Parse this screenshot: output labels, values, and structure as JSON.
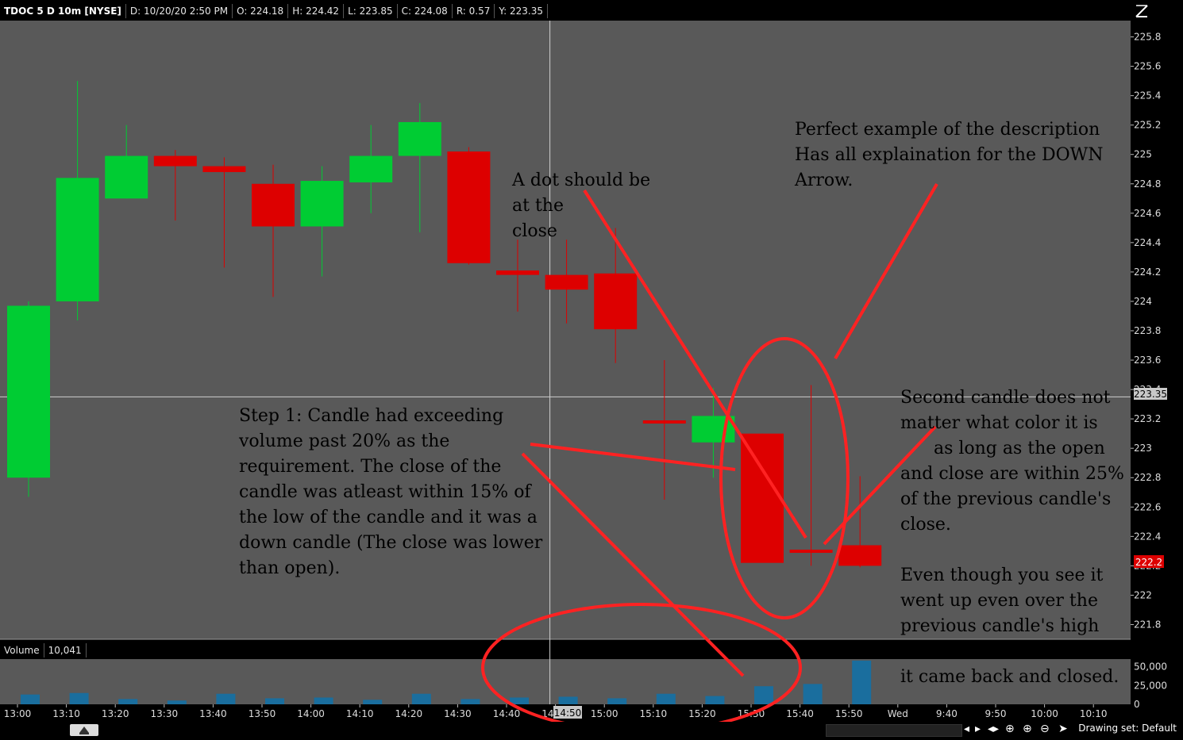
{
  "header": {
    "symbol": "TDOC 5 D 10m [NYSE]",
    "date": "D: 10/20/20 2:50 PM",
    "open": "O: 224.18",
    "high": "H: 224.42",
    "low": "L: 223.85",
    "close": "C: 224.08",
    "range": "R: 0.57",
    "y": "Y: 223.35"
  },
  "volume_header": {
    "label": "Volume",
    "value": "10,041"
  },
  "crosshair": {
    "price_label": "223.35",
    "time_label": "14:50",
    "price": 223.35,
    "time_index": 11
  },
  "last_price_label": "222.2",
  "notes": {
    "dot": "A dot should be\nat the\nclose",
    "perfect": "Perfect example of the description\nHas all explaination for the DOWN\nArrow.",
    "step1": "Step 1: Candle had exceeding\nvolume past 20% as the\nrequirement. The close of the\ncandle was atleast within 15% of\nthe low of the candle and it was a\ndown candle (The close was lower\nthan open).",
    "second": "Second candle does not\nmatter what color it is\n      as long as the open\nand close are within 25%\nof the previous candle's\nclose.\n\nEven though you see it\nwent up even over the\nprevious candle's high",
    "closed": "it came back and closed."
  },
  "drawing_set": "Drawing set: Default",
  "colors": {
    "up": "#00cc33",
    "down": "#dd0000",
    "volume": "#1a6e9e",
    "annotation": "#ff2222",
    "panel": "#595959",
    "axis": "#000000"
  },
  "chart_data": {
    "type": "candlestick",
    "x_labels": [
      "13:00",
      "13:10",
      "13:20",
      "13:30",
      "13:40",
      "13:50",
      "14:00",
      "14:10",
      "14:20",
      "14:30",
      "14:40",
      "14:50",
      "15:00",
      "15:10",
      "15:20",
      "15:30",
      "15:40",
      "15:50",
      "Wed",
      "9:40",
      "9:50",
      "10:00",
      "10:10"
    ],
    "y_ticks": [
      225.8,
      225.6,
      225.4,
      225.2,
      225,
      224.8,
      224.6,
      224.4,
      224.2,
      224,
      223.8,
      223.6,
      223.4,
      223.2,
      223,
      222.8,
      222.6,
      222.4,
      222.2,
      222,
      221.8
    ],
    "ylim": [
      221.7,
      225.9
    ],
    "volume_ticks": [
      "50,000",
      "25,000",
      "0"
    ],
    "volume_max": 60000,
    "candles": [
      {
        "o": 222.8,
        "h": 224.0,
        "l": 222.67,
        "c": 223.97,
        "v": 13000
      },
      {
        "o": 224.0,
        "h": 225.5,
        "l": 223.87,
        "c": 224.84,
        "v": 15000
      },
      {
        "o": 224.7,
        "h": 225.2,
        "l": 224.7,
        "c": 224.99,
        "v": 7000
      },
      {
        "o": 224.99,
        "h": 225.03,
        "l": 224.55,
        "c": 224.92,
        "v": 5000
      },
      {
        "o": 224.92,
        "h": 224.98,
        "l": 224.23,
        "c": 224.88,
        "v": 14000
      },
      {
        "o": 224.8,
        "h": 224.93,
        "l": 224.03,
        "c": 224.51,
        "v": 8000
      },
      {
        "o": 224.51,
        "h": 224.92,
        "l": 224.17,
        "c": 224.82,
        "v": 9000
      },
      {
        "o": 224.81,
        "h": 225.2,
        "l": 224.6,
        "c": 224.99,
        "v": 6000
      },
      {
        "o": 224.99,
        "h": 225.35,
        "l": 224.47,
        "c": 225.22,
        "v": 14000
      },
      {
        "o": 225.02,
        "h": 225.05,
        "l": 224.25,
        "c": 224.26,
        "v": 7000
      },
      {
        "o": 224.21,
        "h": 224.42,
        "l": 223.93,
        "c": 224.18,
        "v": 9000
      },
      {
        "o": 224.18,
        "h": 224.42,
        "l": 223.85,
        "c": 224.08,
        "v": 10041
      },
      {
        "o": 224.19,
        "h": 224.5,
        "l": 223.58,
        "c": 223.81,
        "v": 8000
      },
      {
        "o": 223.19,
        "h": 223.6,
        "l": 222.65,
        "c": 223.18,
        "v": 14000
      },
      {
        "o": 223.04,
        "h": 223.41,
        "l": 222.8,
        "c": 223.22,
        "v": 11000
      },
      {
        "o": 223.1,
        "h": 223.1,
        "l": 222.23,
        "c": 222.22,
        "v": 24000
      },
      {
        "o": 222.31,
        "h": 223.43,
        "l": 222.2,
        "c": 222.29,
        "v": 27000
      },
      {
        "o": 222.34,
        "h": 222.81,
        "l": 222.19,
        "c": 222.2,
        "v": 58000
      }
    ]
  }
}
